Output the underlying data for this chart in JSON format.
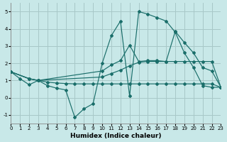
{
  "xlabel": "Humidex (Indice chaleur)",
  "bg_color": "#c8e8e8",
  "grid_color": "#a8c8c8",
  "line_color": "#1a6e6a",
  "xlim": [
    0,
    23
  ],
  "ylim": [
    -1.5,
    5.5
  ],
  "xticks": [
    0,
    1,
    2,
    3,
    4,
    5,
    6,
    7,
    8,
    9,
    10,
    11,
    12,
    13,
    14,
    15,
    16,
    17,
    18,
    19,
    20,
    21,
    22,
    23
  ],
  "yticks": [
    -1,
    0,
    1,
    2,
    3,
    4,
    5
  ],
  "line_zigzag_x": [
    0,
    1,
    2,
    3,
    4,
    5,
    6,
    7,
    8,
    9,
    10,
    11,
    12,
    13,
    14,
    15,
    16,
    17,
    18,
    19,
    20,
    21,
    22,
    23
  ],
  "line_zigzag_y": [
    1.5,
    1.1,
    0.75,
    1.0,
    0.7,
    0.55,
    0.45,
    -1.15,
    -0.65,
    -0.35,
    2.0,
    3.6,
    4.45,
    0.1,
    5.0,
    4.85,
    4.65,
    4.45,
    3.8,
    2.6,
    1.75,
    0.7,
    0.6,
    0.6
  ],
  "line_flat_x": [
    0,
    2,
    3,
    4,
    5,
    6,
    7,
    8,
    9,
    10,
    11,
    12,
    13,
    14,
    15,
    16,
    17,
    18,
    19,
    20,
    21,
    22,
    23
  ],
  "line_flat_y": [
    1.5,
    1.1,
    1.0,
    0.9,
    0.85,
    0.82,
    0.8,
    0.8,
    0.8,
    0.8,
    0.8,
    0.8,
    0.8,
    0.8,
    0.8,
    0.8,
    0.8,
    0.8,
    0.8,
    0.8,
    0.8,
    0.8,
    0.6
  ],
  "line_diag1_x": [
    0,
    2,
    3,
    10,
    11,
    12,
    13,
    14,
    15,
    16,
    17,
    18,
    19,
    20,
    21,
    22,
    23
  ],
  "line_diag1_y": [
    1.5,
    1.1,
    1.0,
    1.55,
    1.9,
    2.15,
    3.05,
    2.1,
    2.15,
    2.15,
    2.1,
    3.85,
    3.2,
    2.6,
    1.75,
    1.55,
    0.6
  ],
  "line_diag2_x": [
    0,
    2,
    3,
    10,
    11,
    12,
    13,
    14,
    15,
    16,
    17,
    18,
    19,
    20,
    21,
    22,
    23
  ],
  "line_diag2_y": [
    1.5,
    1.1,
    1.0,
    1.2,
    1.4,
    1.6,
    1.85,
    2.05,
    2.1,
    2.1,
    2.1,
    2.1,
    2.1,
    2.1,
    2.1,
    2.1,
    0.6
  ]
}
